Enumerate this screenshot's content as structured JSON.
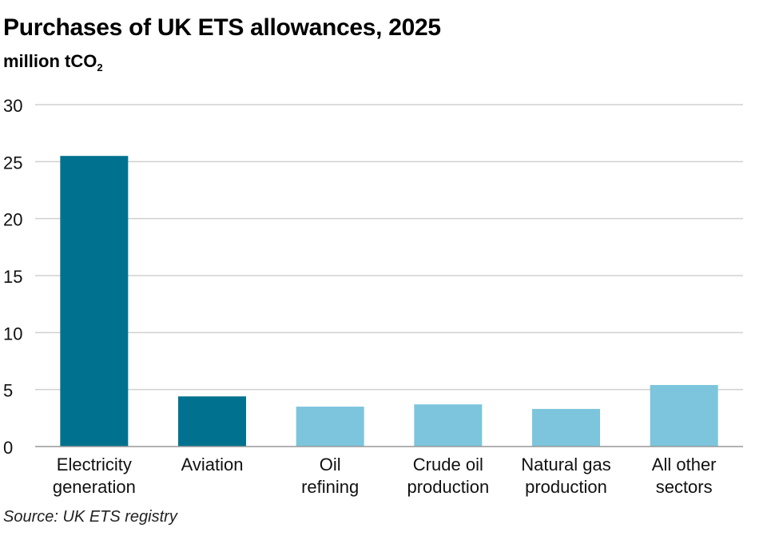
{
  "title": "Purchases of UK ETS allowances, 2025",
  "subtitle": {
    "text": "million tCO",
    "subscript": "2"
  },
  "source": "Source: UK ETS registry",
  "colors": {
    "dark_bar": "#00728f",
    "light_bar": "#7cc5dc",
    "grid": "#d0d0d0",
    "axis": "#999999"
  },
  "chart_data": {
    "type": "bar",
    "categories": [
      [
        "Electricity",
        "generation"
      ],
      [
        "Aviation"
      ],
      [
        "Oil",
        "refining"
      ],
      [
        "Crude oil",
        "production"
      ],
      [
        "Natural gas",
        "production"
      ],
      [
        "All other",
        "sectors"
      ]
    ],
    "values": [
      25.5,
      4.4,
      3.5,
      3.7,
      3.3,
      5.4
    ],
    "bar_colors": [
      "dark_bar",
      "dark_bar",
      "light_bar",
      "light_bar",
      "light_bar",
      "light_bar"
    ],
    "ylim": [
      0,
      30
    ],
    "yticks": [
      "0",
      "5",
      "10",
      "15",
      "20",
      "25",
      "30"
    ],
    "grid": true,
    "legend": "none"
  }
}
